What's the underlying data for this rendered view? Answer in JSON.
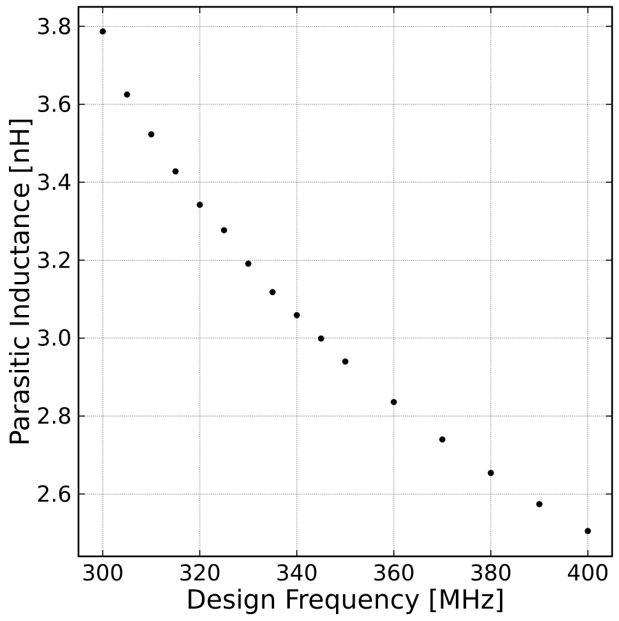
{
  "chart_data": {
    "type": "scatter",
    "title": "",
    "xlabel": "Design Frequency [MHz]",
    "ylabel": "Parasitic Inductance [nH]",
    "xlim": [
      295,
      405
    ],
    "ylim": [
      2.44,
      3.85
    ],
    "x_ticks": [
      300,
      320,
      340,
      360,
      380,
      400
    ],
    "y_ticks": [
      2.6,
      2.8,
      3.0,
      3.2,
      3.4,
      3.6,
      3.8
    ],
    "x_tick_labels": [
      "300",
      "320",
      "340",
      "360",
      "380",
      "400"
    ],
    "y_tick_labels": [
      "2.6",
      "2.8",
      "3.0",
      "3.2",
      "3.4",
      "3.6",
      "3.8"
    ],
    "grid": true,
    "marker_color": "#000000",
    "series": [
      {
        "x": [
          300,
          305,
          310,
          315,
          320,
          325,
          330,
          335,
          340,
          345,
          350,
          360,
          370,
          380,
          390,
          400
        ],
        "y": [
          3.787,
          3.625,
          3.523,
          3.428,
          3.342,
          3.277,
          3.191,
          3.118,
          3.059,
          2.999,
          2.94,
          2.836,
          2.74,
          2.654,
          2.574,
          2.505
        ]
      }
    ]
  }
}
